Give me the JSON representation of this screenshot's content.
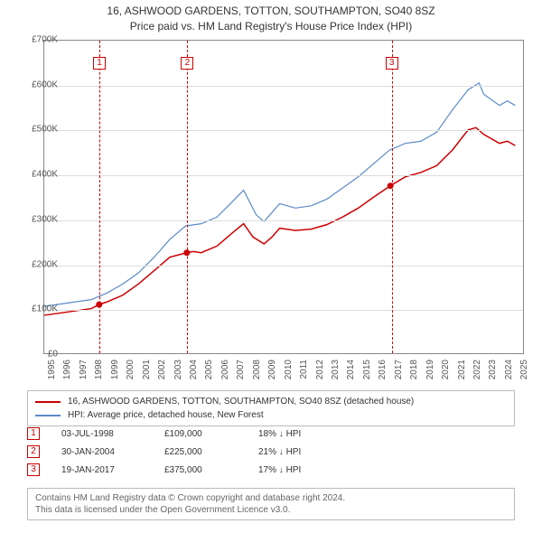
{
  "title": {
    "line1": "16, ASHWOOD GARDENS, TOTTON, SOUTHAMPTON, SO40 8SZ",
    "line2": "Price paid vs. HM Land Registry's House Price Index (HPI)"
  },
  "chart": {
    "type": "line",
    "background_color": "#ffffff",
    "grid_color": "#dddddd",
    "axis_color": "#888888",
    "xlim": [
      1995,
      2025.5
    ],
    "ylim": [
      0,
      700
    ],
    "ytick_step": 100,
    "ytick_labels": [
      "£0",
      "£100K",
      "£200K",
      "£300K",
      "£400K",
      "£500K",
      "£600K",
      "£700K"
    ],
    "xtick_years": [
      1995,
      1996,
      1997,
      1998,
      1999,
      2000,
      2001,
      2002,
      2003,
      2004,
      2005,
      2006,
      2007,
      2008,
      2009,
      2010,
      2011,
      2012,
      2013,
      2014,
      2015,
      2016,
      2017,
      2018,
      2019,
      2020,
      2021,
      2022,
      2023,
      2024,
      2025
    ],
    "series": {
      "property": {
        "color": "#cc0000",
        "width": 1.5,
        "data": [
          [
            1995,
            85
          ],
          [
            1996,
            90
          ],
          [
            1997,
            95
          ],
          [
            1998,
            100
          ],
          [
            1998.5,
            109
          ],
          [
            1999,
            115
          ],
          [
            2000,
            130
          ],
          [
            2001,
            155
          ],
          [
            2002,
            185
          ],
          [
            2003,
            215
          ],
          [
            2004.08,
            225
          ],
          [
            2004.5,
            228
          ],
          [
            2005,
            225
          ],
          [
            2006,
            240
          ],
          [
            2007,
            270
          ],
          [
            2007.7,
            290
          ],
          [
            2008.3,
            260
          ],
          [
            2009,
            245
          ],
          [
            2009.5,
            260
          ],
          [
            2010,
            280
          ],
          [
            2011,
            275
          ],
          [
            2012,
            278
          ],
          [
            2013,
            288
          ],
          [
            2014,
            305
          ],
          [
            2015,
            325
          ],
          [
            2016,
            350
          ],
          [
            2017.05,
            375
          ],
          [
            2018,
            395
          ],
          [
            2019,
            405
          ],
          [
            2020,
            420
          ],
          [
            2021,
            455
          ],
          [
            2022,
            500
          ],
          [
            2022.5,
            505
          ],
          [
            2023,
            490
          ],
          [
            2024,
            470
          ],
          [
            2024.5,
            475
          ],
          [
            2025,
            465
          ]
        ]
      },
      "hpi": {
        "color": "#5b8bc9",
        "width": 1.2,
        "data": [
          [
            1995,
            105
          ],
          [
            1996,
            110
          ],
          [
            1997,
            115
          ],
          [
            1998,
            120
          ],
          [
            1999,
            135
          ],
          [
            2000,
            155
          ],
          [
            2001,
            180
          ],
          [
            2002,
            215
          ],
          [
            2003,
            255
          ],
          [
            2004,
            285
          ],
          [
            2005,
            290
          ],
          [
            2006,
            305
          ],
          [
            2007,
            340
          ],
          [
            2007.7,
            365
          ],
          [
            2008.5,
            310
          ],
          [
            2009,
            295
          ],
          [
            2009.5,
            315
          ],
          [
            2010,
            335
          ],
          [
            2011,
            325
          ],
          [
            2012,
            330
          ],
          [
            2013,
            345
          ],
          [
            2014,
            370
          ],
          [
            2015,
            395
          ],
          [
            2016,
            425
          ],
          [
            2017,
            455
          ],
          [
            2018,
            470
          ],
          [
            2019,
            475
          ],
          [
            2020,
            495
          ],
          [
            2021,
            545
          ],
          [
            2022,
            590
          ],
          [
            2022.7,
            605
          ],
          [
            2023,
            580
          ],
          [
            2024,
            555
          ],
          [
            2024.5,
            565
          ],
          [
            2025,
            555
          ]
        ]
      }
    },
    "markers": [
      {
        "num": "1",
        "x": 1998.5,
        "y": 109
      },
      {
        "num": "2",
        "x": 2004.08,
        "y": 225
      },
      {
        "num": "3",
        "x": 2017.05,
        "y": 375
      }
    ]
  },
  "legend": {
    "rows": [
      {
        "label": "16, ASHWOOD GARDENS, TOTTON, SOUTHAMPTON, SO40 8SZ (detached house)",
        "color": "#cc0000"
      },
      {
        "label": "HPI: Average price, detached house, New Forest",
        "color": "#5b8bc9"
      }
    ]
  },
  "events": [
    {
      "num": "1",
      "date": "03-JUL-1998",
      "price": "£109,000",
      "diff": "18% ↓ HPI"
    },
    {
      "num": "2",
      "date": "30-JAN-2004",
      "price": "£225,000",
      "diff": "21% ↓ HPI"
    },
    {
      "num": "3",
      "date": "19-JAN-2017",
      "price": "£375,000",
      "diff": "17% ↓ HPI"
    }
  ],
  "footer": {
    "line1": "Contains HM Land Registry data © Crown copyright and database right 2024.",
    "line2": "This data is licensed under the Open Government Licence v3.0."
  }
}
